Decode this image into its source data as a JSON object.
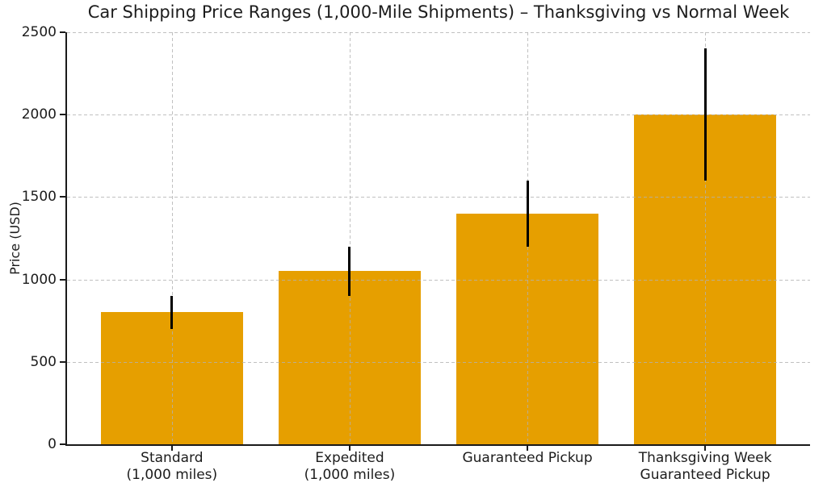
{
  "chart_data": {
    "type": "bar",
    "title": "Car Shipping Price Ranges (1,000-Mile Shipments) – Thanksgiving vs Normal Week",
    "xlabel": "",
    "ylabel": "Price (USD)",
    "categories": [
      "Standard\n(1,000 miles)",
      "Expedited\n(1,000 miles)",
      "Guaranteed Pickup",
      "Thanksgiving Week\nGuaranteed Pickup"
    ],
    "values": [
      800,
      1050,
      1400,
      2000
    ],
    "error_low": [
      700,
      900,
      1200,
      1600
    ],
    "error_high": [
      900,
      1200,
      1600,
      2400
    ],
    "ylim": [
      0,
      2500
    ],
    "yticks": [
      0,
      500,
      1000,
      1500,
      2000,
      2500
    ],
    "bar_color": "#E69F00",
    "error_bar_color": "#000000",
    "grid": "dashed light-gray gridlines on both axes, drawn above bars",
    "legend": "none",
    "background_color": "#ffffff",
    "spine_color": "#1a1a1a",
    "text_color": "#1c1c1c"
  }
}
